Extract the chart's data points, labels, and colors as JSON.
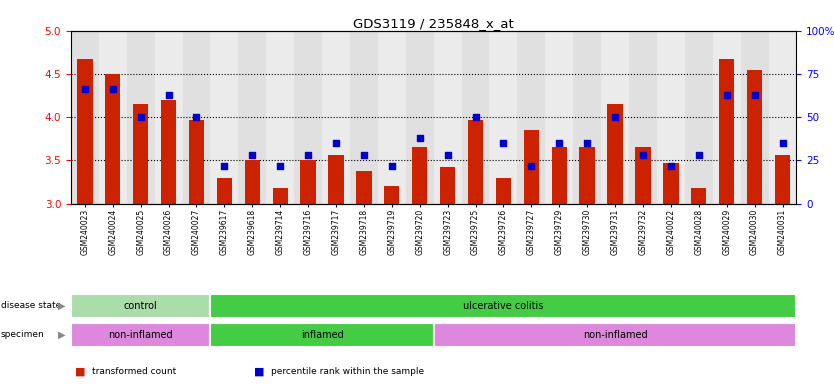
{
  "title": "GDS3119 / 235848_x_at",
  "samples": [
    "GSM240023",
    "GSM240024",
    "GSM240025",
    "GSM240026",
    "GSM240027",
    "GSM239617",
    "GSM239618",
    "GSM239714",
    "GSM239716",
    "GSM239717",
    "GSM239718",
    "GSM239719",
    "GSM239720",
    "GSM239723",
    "GSM239725",
    "GSM239726",
    "GSM239727",
    "GSM239729",
    "GSM239730",
    "GSM239731",
    "GSM239732",
    "GSM240022",
    "GSM240028",
    "GSM240029",
    "GSM240030",
    "GSM240031"
  ],
  "bar_values": [
    4.67,
    4.5,
    4.15,
    4.2,
    3.97,
    3.3,
    3.5,
    3.18,
    3.5,
    3.56,
    3.38,
    3.2,
    3.65,
    3.42,
    3.97,
    3.3,
    3.85,
    3.65,
    3.65,
    4.15,
    3.65,
    3.47,
    3.18,
    4.67,
    4.55,
    3.56
  ],
  "percentile_values": [
    66,
    66,
    50,
    63,
    50,
    22,
    28,
    22,
    28,
    35,
    28,
    22,
    38,
    28,
    50,
    35,
    22,
    35,
    35,
    50,
    28,
    22,
    28,
    63,
    63,
    35
  ],
  "ylim_left": [
    3.0,
    5.0
  ],
  "ylim_right": [
    0,
    100
  ],
  "yticks_left": [
    3.0,
    3.5,
    4.0,
    4.5,
    5.0
  ],
  "yticks_right": [
    0,
    25,
    50,
    75,
    100
  ],
  "bar_color": "#cc2200",
  "dot_color": "#0000cc",
  "disease_state_groups": [
    {
      "label": "control",
      "start": 0,
      "end": 5,
      "color": "#aaddaa"
    },
    {
      "label": "ulcerative colitis",
      "start": 5,
      "end": 26,
      "color": "#44cc44"
    }
  ],
  "specimen_groups": [
    {
      "label": "non-inflamed",
      "start": 0,
      "end": 5,
      "color": "#dd88dd"
    },
    {
      "label": "inflamed",
      "start": 5,
      "end": 13,
      "color": "#44cc44"
    },
    {
      "label": "non-inflamed",
      "start": 13,
      "end": 26,
      "color": "#dd88dd"
    }
  ],
  "legend_items": [
    {
      "color": "#cc2200",
      "label": "transformed count"
    },
    {
      "color": "#0000cc",
      "label": "percentile rank within the sample"
    }
  ]
}
